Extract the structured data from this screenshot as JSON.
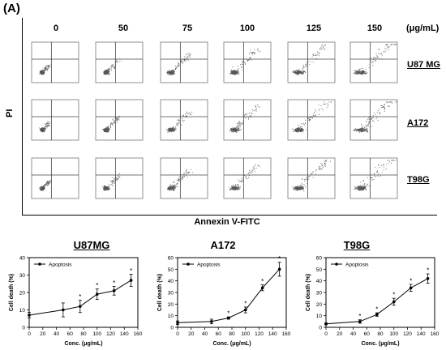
{
  "figure": {
    "panel_label": "(A)",
    "concentrations": [
      "0",
      "50",
      "75",
      "100",
      "125",
      "150"
    ],
    "unit": "(μg/mL)",
    "y_axis_label": "PI",
    "x_axis_label": "Annexin V-FITC",
    "cell_lines": [
      "U87 MG",
      "A172",
      "T98G"
    ]
  },
  "chart_data": [
    {
      "type": "line",
      "title": "U87MG",
      "xlabel": "Conc. (μg/mL)",
      "ylabel": "Cell death (%)",
      "xlim": [
        0,
        160
      ],
      "ylim": [
        0,
        40
      ],
      "xticks": [
        0,
        20,
        40,
        60,
        80,
        100,
        120,
        140,
        160
      ],
      "yticks": [
        0,
        10,
        20,
        30,
        40
      ],
      "legend": "top-left",
      "series": [
        {
          "name": "Apoptosis",
          "x": [
            0,
            50,
            75,
            100,
            125,
            150
          ],
          "y": [
            7,
            10,
            12,
            19,
            21,
            27
          ],
          "err": [
            1.5,
            4,
            3.5,
            3,
            2.5,
            3.5
          ],
          "significant": [
            false,
            false,
            true,
            true,
            true,
            true
          ]
        }
      ]
    },
    {
      "type": "line",
      "title": "A172",
      "xlabel": "Conc. (μg/mL)",
      "ylabel": "Cell death (%)",
      "xlim": [
        0,
        160
      ],
      "ylim": [
        0,
        60
      ],
      "xticks": [
        0,
        20,
        40,
        60,
        80,
        100,
        120,
        140,
        160
      ],
      "yticks": [
        0,
        10,
        20,
        30,
        40,
        50,
        60
      ],
      "legend": "top-left",
      "series": [
        {
          "name": "Apoptosis",
          "x": [
            0,
            50,
            75,
            100,
            125,
            150
          ],
          "y": [
            4,
            5,
            8,
            15,
            34,
            50
          ],
          "err": [
            1.5,
            2,
            1,
            2.5,
            2.5,
            6
          ],
          "significant": [
            false,
            false,
            true,
            true,
            true,
            true
          ]
        }
      ]
    },
    {
      "type": "line",
      "title": "T98G",
      "xlabel": "Conc. (μg/mL)",
      "ylabel": "Cell death (%)",
      "xlim": [
        0,
        160
      ],
      "ylim": [
        0,
        60
      ],
      "xticks": [
        0,
        20,
        40,
        60,
        80,
        100,
        120,
        140,
        160
      ],
      "yticks": [
        0,
        10,
        20,
        30,
        40,
        50,
        60
      ],
      "legend": "top-left",
      "series": [
        {
          "name": "Apoptosis",
          "x": [
            0,
            50,
            75,
            100,
            125,
            150
          ],
          "y": [
            3,
            5,
            11,
            22,
            34,
            42
          ],
          "err": [
            0.8,
            1.5,
            1.5,
            3,
            3,
            4
          ],
          "significant": [
            false,
            true,
            true,
            true,
            true,
            true
          ]
        }
      ]
    }
  ]
}
